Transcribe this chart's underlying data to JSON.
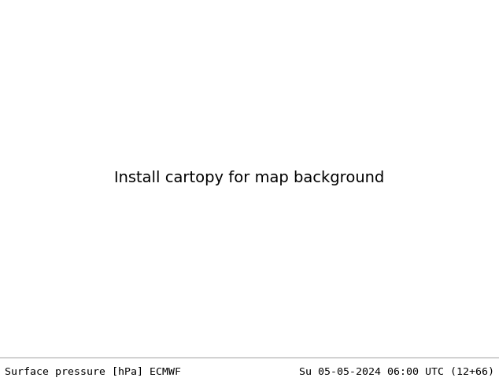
{
  "title_left": "Surface pressure [hPa] ECMWF",
  "title_right": "Su 05-05-2024 06:00 UTC (12+66)",
  "title_fontsize": 9.5,
  "title_color": "#000000",
  "fig_width": 6.34,
  "fig_height": 4.9,
  "dpi": 100,
  "map_extent": [
    22,
    155,
    -13,
    75
  ],
  "ocean_color": "#aaccdd",
  "land_color": "#d8cfa8",
  "lake_color": "#aaccdd",
  "border_color": "#888888",
  "border_lw": 0.35,
  "coastline_color": "#777777",
  "coastline_lw": 0.4,
  "blue_isobar_color": "#0000cc",
  "blue_isobar_lw": 0.85,
  "red_isobar_color": "#cc0000",
  "red_isobar_lw": 0.85,
  "black_isobar_color": "#000000",
  "black_isobar_lw": 1.1,
  "label_fontsize": 6.5,
  "bottom_strip_color": "#ffffff",
  "separator_color": "#aaaaaa"
}
